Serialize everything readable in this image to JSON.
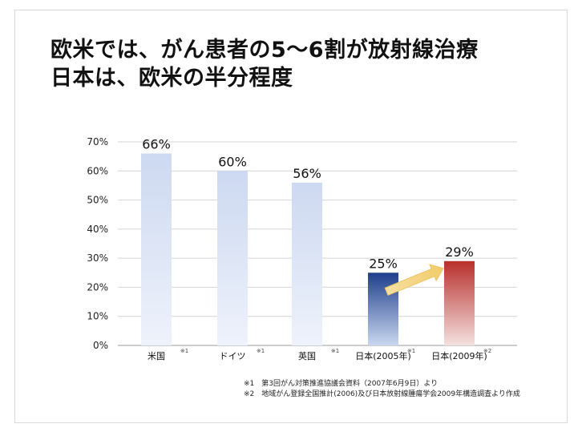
{
  "slide": {
    "title_line1": "欧米では、がん患者の5〜6割が放射線治療",
    "title_line2": "日本は、欧米の半分程度"
  },
  "chart_data": {
    "type": "bar",
    "categories": [
      "米国",
      "ドイツ",
      "英国",
      "日本(2005年)",
      "日本(2009年)"
    ],
    "category_notes": [
      "※1",
      "※1",
      "※1",
      "※1",
      "※2"
    ],
    "values": [
      66,
      60,
      56,
      25,
      29
    ],
    "value_labels": [
      "66%",
      "60%",
      "56%",
      "25%",
      "29%"
    ],
    "yticks": [
      "0%",
      "10%",
      "20%",
      "30%",
      "40%",
      "50%",
      "60%",
      "70%"
    ],
    "ylim": [
      0,
      70
    ],
    "grid": true,
    "annotation": "arrow from 日本(2005年) to 日本(2009年)",
    "colors": {
      "western_top": "#cdd9f1",
      "western_bottom": "#eef2fb",
      "japan2005_top": "#1f3f8c",
      "japan2005_bottom": "#c9d7f0",
      "japan2009_top": "#b8302c",
      "japan2009_bottom": "#f4e1e0",
      "arrow": "#f2cc6b"
    }
  },
  "footnotes": [
    "※1　第3回がん対策推進協議会資料（2007年6月9日）より",
    "※2　地域がん登録全国推計(2006)及び日本放射線腫瘍学会2009年構造調査より作成"
  ]
}
